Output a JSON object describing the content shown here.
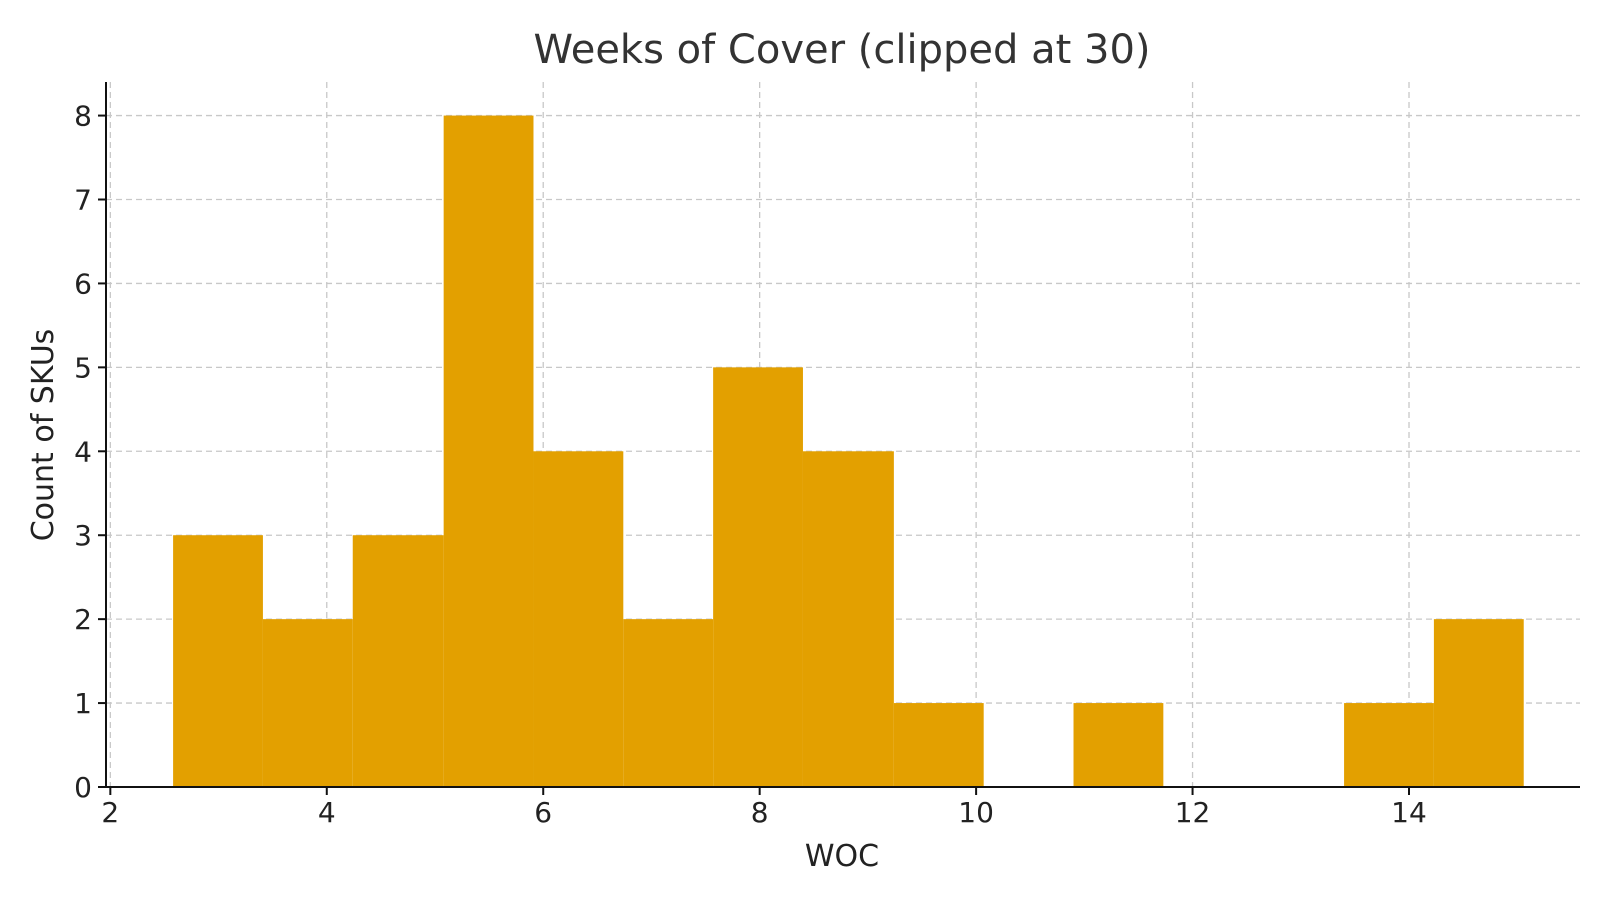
{
  "chart_data": {
    "type": "bar",
    "histogram": true,
    "title": "Weeks of Cover (clipped at 30)",
    "xlabel": "WOC",
    "ylabel": "Count of SKUs",
    "xlim": [
      1.96,
      15.58
    ],
    "ylim": [
      0,
      8.4
    ],
    "xticks": [
      2,
      4,
      6,
      8,
      10,
      12,
      14
    ],
    "yticks": [
      0,
      1,
      2,
      3,
      4,
      5,
      6,
      7,
      8
    ],
    "grid": true,
    "bar_color": "#E3A000",
    "grid_color": "#c8c8c8",
    "bins": [
      {
        "x0": 2.58,
        "x1": 3.41,
        "count": 3
      },
      {
        "x0": 3.41,
        "x1": 4.24,
        "count": 2
      },
      {
        "x0": 4.24,
        "x1": 5.08,
        "count": 3
      },
      {
        "x0": 5.08,
        "x1": 5.91,
        "count": 8
      },
      {
        "x0": 5.91,
        "x1": 6.74,
        "count": 4
      },
      {
        "x0": 6.74,
        "x1": 7.57,
        "count": 2
      },
      {
        "x0": 7.57,
        "x1": 8.4,
        "count": 5
      },
      {
        "x0": 8.4,
        "x1": 9.24,
        "count": 4
      },
      {
        "x0": 9.24,
        "x1": 10.07,
        "count": 1
      },
      {
        "x0": 10.07,
        "x1": 10.9,
        "count": 0
      },
      {
        "x0": 10.9,
        "x1": 11.73,
        "count": 1
      },
      {
        "x0": 11.73,
        "x1": 12.56,
        "count": 0
      },
      {
        "x0": 12.56,
        "x1": 13.4,
        "count": 0
      },
      {
        "x0": 13.4,
        "x1": 14.23,
        "count": 1
      },
      {
        "x0": 14.23,
        "x1": 15.06,
        "count": 2
      }
    ]
  }
}
